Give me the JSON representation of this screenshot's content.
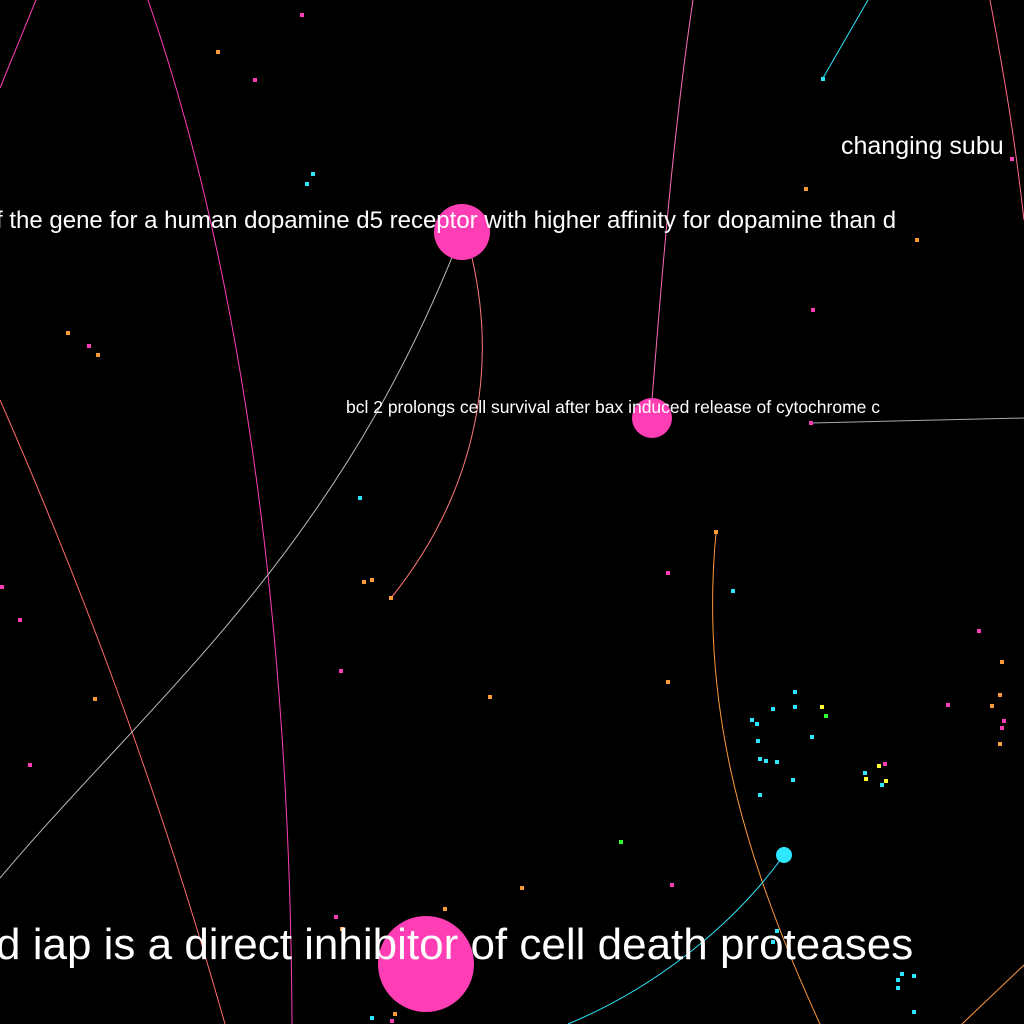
{
  "colors": {
    "background": "#000000",
    "pink": "#ff3db4",
    "orange": "#ff9a3c",
    "cyan": "#2de6ff",
    "yellow": "#ffff33",
    "green": "#33ff33",
    "white": "#ffffff"
  },
  "labels": {
    "dopamine": "f the gene for a human dopamine d5 receptor with higher affinity for dopamine than d",
    "bcl2": "bcl 2 prolongs cell survival after bax induced release of cytochrome c",
    "iap": "d iap is a direct inhibitor of cell death proteases",
    "changing": "changing subu"
  }
}
